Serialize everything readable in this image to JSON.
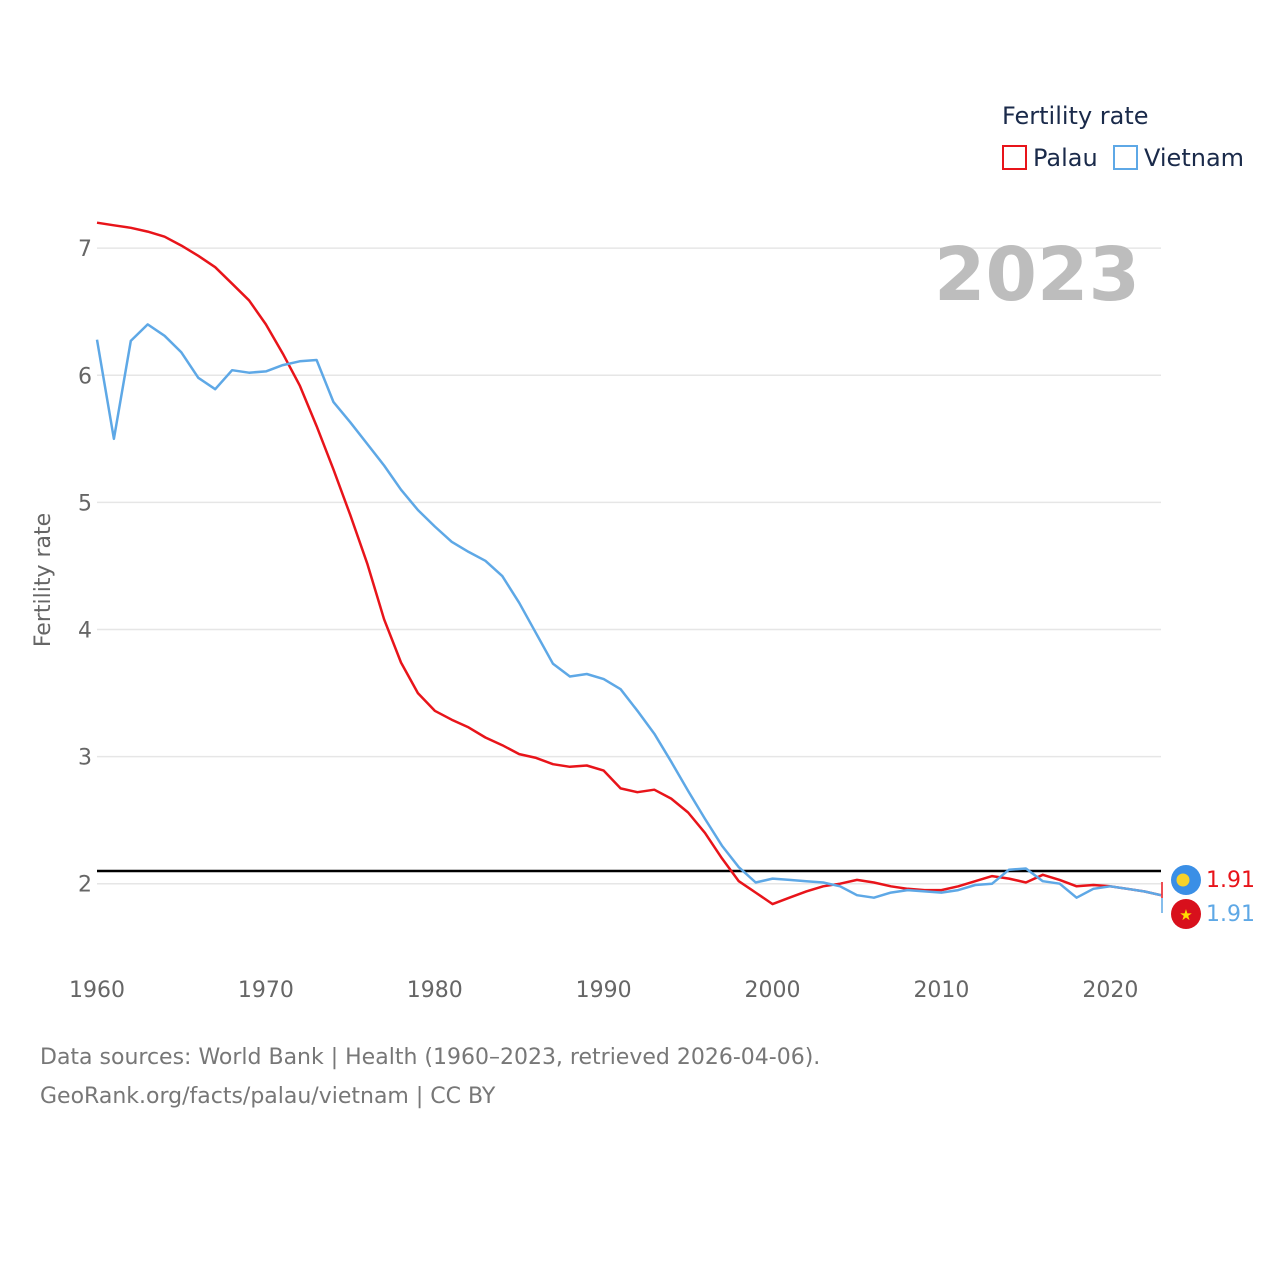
{
  "chart_data": {
    "type": "line",
    "year_label": "2023",
    "ylabel": "Fertility rate",
    "xlim": [
      1960,
      2023
    ],
    "ylim": [
      1.4,
      7.3
    ],
    "yticks": [
      2,
      3,
      4,
      5,
      6,
      7
    ],
    "xticks": [
      1960,
      1970,
      1980,
      1990,
      2000,
      2010,
      2020
    ],
    "reference_line": 2.1,
    "legend": {
      "title": "Fertility rate",
      "position": "top-right"
    },
    "series": [
      {
        "name": "Palau",
        "color": "#e8141a",
        "end_value": "1.91",
        "x": [
          1960,
          1961,
          1962,
          1963,
          1964,
          1965,
          1966,
          1967,
          1968,
          1969,
          1970,
          1971,
          1972,
          1973,
          1974,
          1975,
          1976,
          1977,
          1978,
          1979,
          1980,
          1981,
          1982,
          1983,
          1984,
          1985,
          1986,
          1987,
          1988,
          1989,
          1990,
          1991,
          1992,
          1993,
          1994,
          1995,
          1996,
          1997,
          1998,
          1999,
          2000,
          2001,
          2002,
          2003,
          2004,
          2005,
          2006,
          2007,
          2008,
          2009,
          2010,
          2011,
          2012,
          2013,
          2014,
          2015,
          2016,
          2017,
          2018,
          2019,
          2020,
          2021,
          2022,
          2023
        ],
        "values": [
          7.2,
          7.18,
          7.16,
          7.13,
          7.09,
          7.02,
          6.94,
          6.85,
          6.72,
          6.59,
          6.4,
          6.17,
          5.92,
          5.6,
          5.26,
          4.9,
          4.52,
          4.08,
          3.74,
          3.5,
          3.36,
          3.29,
          3.23,
          3.15,
          3.09,
          3.02,
          2.99,
          2.94,
          2.92,
          2.93,
          2.89,
          2.75,
          2.72,
          2.74,
          2.67,
          2.56,
          2.4,
          2.2,
          2.02,
          1.93,
          1.84,
          1.89,
          1.94,
          1.98,
          2.0,
          2.03,
          2.01,
          1.98,
          1.96,
          1.95,
          1.95,
          1.98,
          2.02,
          2.06,
          2.04,
          2.01,
          2.07,
          2.03,
          1.98,
          1.99,
          1.98,
          1.96,
          1.94,
          1.91
        ]
      },
      {
        "name": "Vietnam",
        "color": "#5ea8e6",
        "end_value": "1.91",
        "x": [
          1960,
          1961,
          1962,
          1963,
          1964,
          1965,
          1966,
          1967,
          1968,
          1969,
          1970,
          1971,
          1972,
          1973,
          1974,
          1975,
          1976,
          1977,
          1978,
          1979,
          1980,
          1981,
          1982,
          1983,
          1984,
          1985,
          1986,
          1987,
          1988,
          1989,
          1990,
          1991,
          1992,
          1993,
          1994,
          1995,
          1996,
          1997,
          1998,
          1999,
          2000,
          2001,
          2002,
          2003,
          2004,
          2005,
          2006,
          2007,
          2008,
          2009,
          2010,
          2011,
          2012,
          2013,
          2014,
          2015,
          2016,
          2017,
          2018,
          2019,
          2020,
          2021,
          2022,
          2023
        ],
        "values": [
          6.28,
          5.5,
          6.27,
          6.4,
          6.31,
          6.18,
          5.98,
          5.89,
          6.04,
          6.02,
          6.03,
          6.08,
          6.11,
          6.12,
          5.79,
          5.63,
          5.46,
          5.29,
          5.1,
          4.94,
          4.81,
          4.69,
          4.61,
          4.54,
          4.42,
          4.21,
          3.97,
          3.73,
          3.63,
          3.65,
          3.61,
          3.53,
          3.36,
          3.18,
          2.96,
          2.73,
          2.51,
          2.3,
          2.13,
          2.01,
          2.04,
          2.03,
          2.02,
          2.01,
          1.98,
          1.91,
          1.89,
          1.93,
          1.95,
          1.94,
          1.93,
          1.95,
          1.99,
          2.0,
          2.11,
          2.12,
          2.02,
          2.0,
          1.89,
          1.96,
          1.98,
          1.96,
          1.94,
          1.91
        ]
      }
    ]
  },
  "footer": {
    "line1": "Data sources: World Bank | Health (1960–2023, retrieved 2026-04-06).",
    "line2": "GeoRank.org/facts/palau/vietnam | CC BY"
  }
}
